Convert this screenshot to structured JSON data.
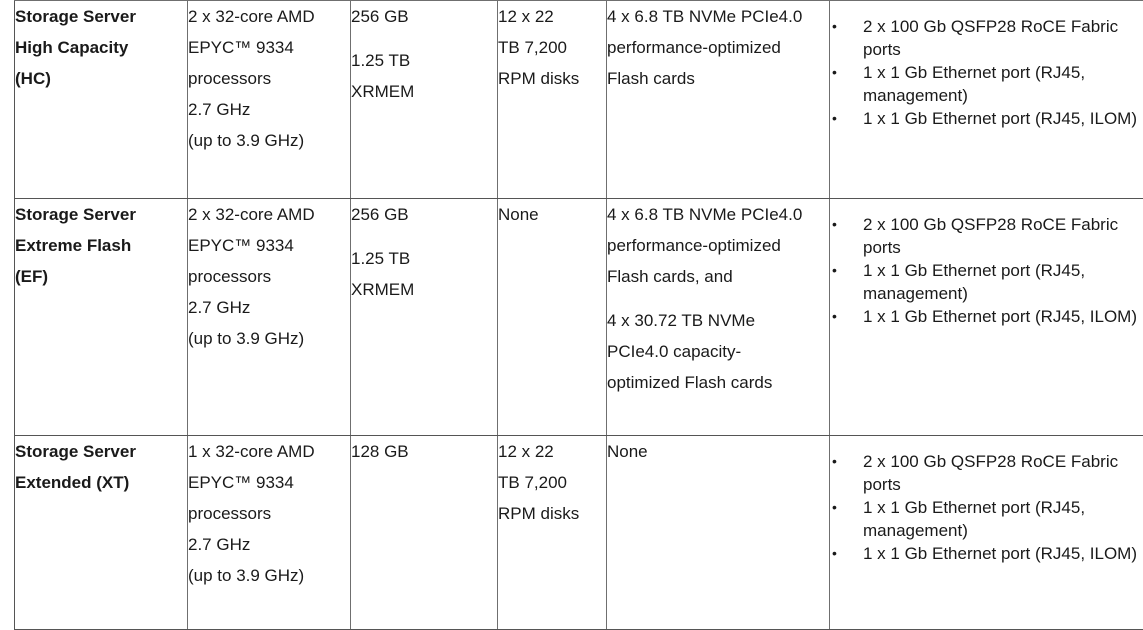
{
  "rows": [
    {
      "name": [
        "Storage Server",
        "High Capacity",
        "(HC)"
      ],
      "cpu": [
        "2 x 32-core AMD",
        "EPYC™ 9334",
        "processors",
        "2.7 GHz",
        "(up to 3.9 GHz)"
      ],
      "memory": "256 GB",
      "xrmem": [
        "1.25 TB",
        "XRMEM"
      ],
      "disks": [
        "12 x 22",
        "TB 7,200",
        "RPM disks"
      ],
      "flash": [
        "4 x 6.8 TB NVMe PCIe4.0",
        "performance-optimized",
        "Flash cards"
      ],
      "flash2": [],
      "network": [
        "2 x 100 Gb QSFP28 RoCE Fabric ports",
        "1 x 1 Gb Ethernet port (RJ45, management)",
        "1 x 1 Gb Ethernet port (RJ45, ILOM)"
      ]
    },
    {
      "name": [
        "Storage Server",
        "Extreme Flash",
        "(EF)"
      ],
      "cpu": [
        "2 x 32-core AMD",
        "EPYC™ 9334",
        "processors",
        "2.7 GHz",
        "(up to 3.9 GHz)"
      ],
      "memory": "256 GB",
      "xrmem": [
        "1.25 TB",
        "XRMEM"
      ],
      "disks": [
        "None"
      ],
      "flash": [
        "4 x 6.8 TB NVMe PCIe4.0",
        "performance-optimized",
        "Flash cards, and"
      ],
      "flash2": [
        "4 x 30.72 TB NVMe",
        "PCIe4.0 capacity-",
        "optimized Flash cards"
      ],
      "network": [
        "2 x 100 Gb QSFP28 RoCE Fabric ports",
        "1 x 1 Gb Ethernet port (RJ45, management)",
        "1 x 1 Gb Ethernet port (RJ45, ILOM)"
      ]
    },
    {
      "name": [
        "Storage Server",
        "Extended (XT)"
      ],
      "cpu": [
        "1 x 32-core AMD",
        "EPYC™ 9334",
        "processors",
        "2.7 GHz",
        "(up to 3.9 GHz)"
      ],
      "memory": "128 GB",
      "xrmem": [],
      "disks": [
        "12 x 22",
        "TB 7,200",
        "RPM disks"
      ],
      "flash": [
        "None"
      ],
      "flash2": [],
      "network": [
        "2 x 100 Gb QSFP28 RoCE Fabric ports",
        "1 x 1 Gb Ethernet port (RJ45, management)",
        "1 x 1 Gb Ethernet port (RJ45, ILOM)"
      ]
    }
  ],
  "bullet_glyph": "•"
}
